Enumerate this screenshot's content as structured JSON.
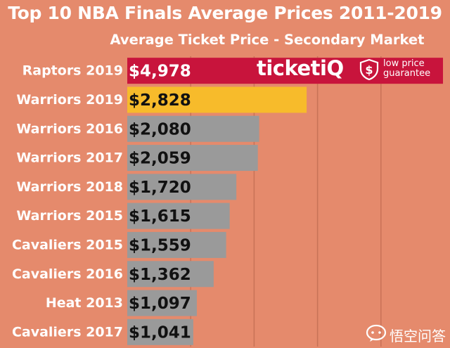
{
  "chart_data": {
    "type": "bar",
    "orientation": "horizontal",
    "title": "Top 10 NBA Finals Average Prices 2011-2019",
    "subtitle": "Average Ticket Price - Secondary Market",
    "categories": [
      "Raptors 2019",
      "Warriors 2019",
      "Warriors 2016",
      "Warriors 2017",
      "Warriors 2018",
      "Warriors 2015",
      "Cavaliers 2015",
      "Cavaliers 2016",
      "Heat 2013",
      "Cavaliers 2017"
    ],
    "values": [
      4978,
      2828,
      2080,
      2059,
      1720,
      1615,
      1559,
      1362,
      1097,
      1041
    ],
    "value_labels": [
      "$4,978",
      "$2,828",
      "$2,080",
      "$2,059",
      "$1,720",
      "$1,615",
      "$1,559",
      "$1,362",
      "$1,097",
      "$1,041"
    ],
    "bar_colors": [
      "#c8143c",
      "#f7bb2b",
      "#9a9a9a",
      "#9a9a9a",
      "#9a9a9a",
      "#9a9a9a",
      "#9a9a9a",
      "#9a9a9a",
      "#9a9a9a",
      "#9a9a9a"
    ],
    "xlim": [
      0,
      5000
    ],
    "gridlines": [
      1000,
      2000,
      3000,
      4000
    ],
    "grid": true,
    "legend": "none"
  },
  "colors": {
    "background": "#e58a6c",
    "gridline": "#c87257"
  },
  "logo": {
    "word": "ticket",
    "word_accent": "iQ",
    "tagline_line1": "low price",
    "tagline_line2": "guarantee",
    "icon": "dollar-shield-icon"
  },
  "watermark": {
    "icon": "chat-bubble-icon",
    "text": "悟空问答"
  }
}
